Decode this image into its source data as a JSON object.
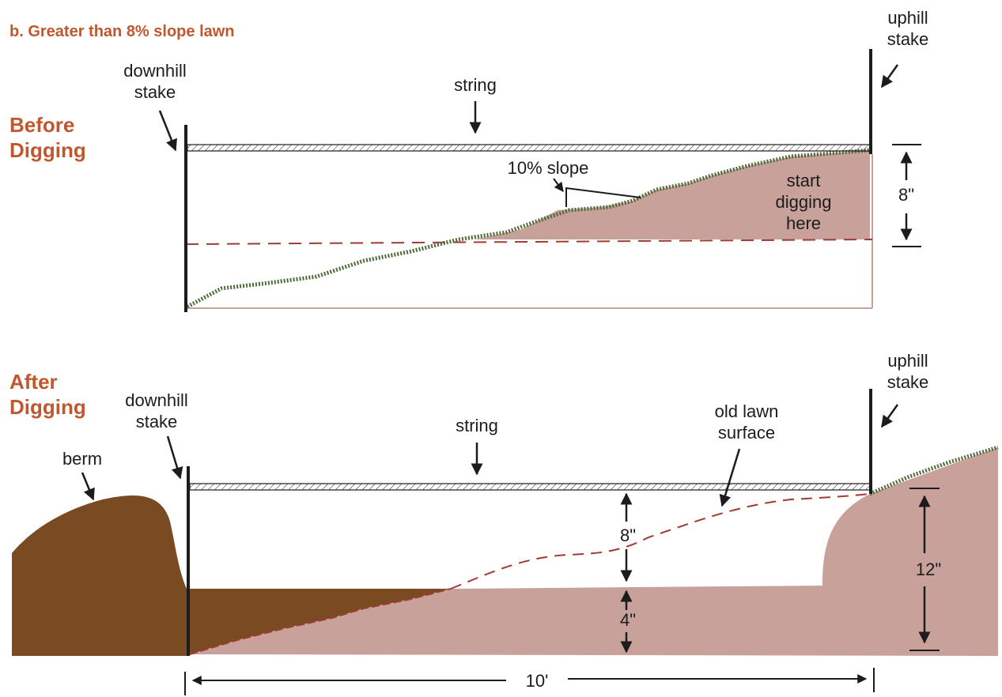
{
  "subtitle": "b. Greater than 8% slope lawn",
  "colors": {
    "heading": "#c0582f",
    "soil": "#c9a19b",
    "berm": "#7a4a22",
    "grass": "#4f6b3a",
    "dashed_line": "#a13a34",
    "line": "#1c1c1c"
  },
  "before": {
    "heading_line1": "Before",
    "heading_line2": "Digging",
    "downhill_stake": [
      "downhill",
      "stake"
    ],
    "uphill_stake": [
      "uphill",
      "stake"
    ],
    "string": "string",
    "slope": "10% slope",
    "start": [
      "start",
      "digging",
      "here"
    ],
    "depth": "8\""
  },
  "after": {
    "heading_line1": "After",
    "heading_line2": "Digging",
    "downhill_stake": [
      "downhill",
      "stake"
    ],
    "uphill_stake": [
      "uphill",
      "stake"
    ],
    "string": "string",
    "berm": "berm",
    "old_surface": [
      "old lawn",
      "surface"
    ],
    "depth_top": "8\"",
    "depth_bottom": "4\"",
    "depth_total": "12\"",
    "length": "10'"
  }
}
